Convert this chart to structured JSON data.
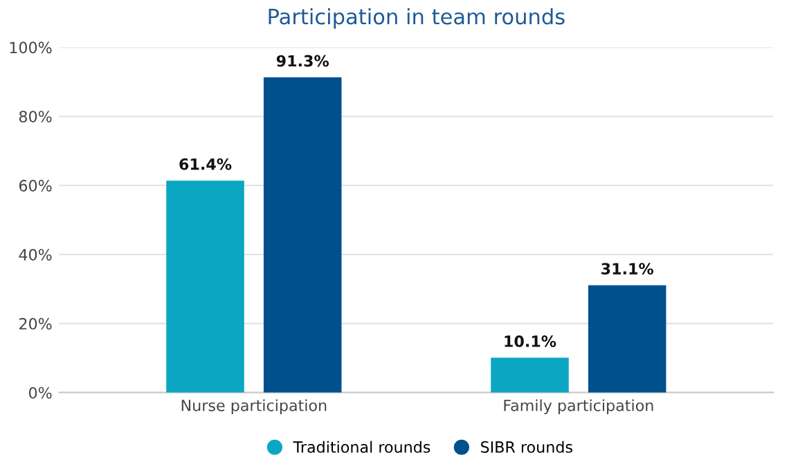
{
  "chart_data": {
    "type": "bar",
    "title": "Participation in team rounds",
    "categories": [
      "Nurse participation",
      "Family participation"
    ],
    "series": [
      {
        "name": "Traditional rounds",
        "color": "#0ba7c2",
        "values": [
          61.4,
          10.1
        ],
        "value_labels": [
          "61.4%",
          "10.1%"
        ]
      },
      {
        "name": "SIBR rounds",
        "color": "#00508e",
        "values": [
          91.3,
          31.1
        ],
        "value_labels": [
          "91.3%",
          "31.1%"
        ]
      }
    ],
    "ylim": [
      0,
      100
    ],
    "yticks": [
      {
        "value": 0,
        "label": "0%"
      },
      {
        "value": 20,
        "label": "20%"
      },
      {
        "value": 40,
        "label": "40%"
      },
      {
        "value": 60,
        "label": "60%"
      },
      {
        "value": 80,
        "label": "80%"
      },
      {
        "value": 100,
        "label": "100%"
      }
    ],
    "grid": "y",
    "legend": "bottom"
  }
}
